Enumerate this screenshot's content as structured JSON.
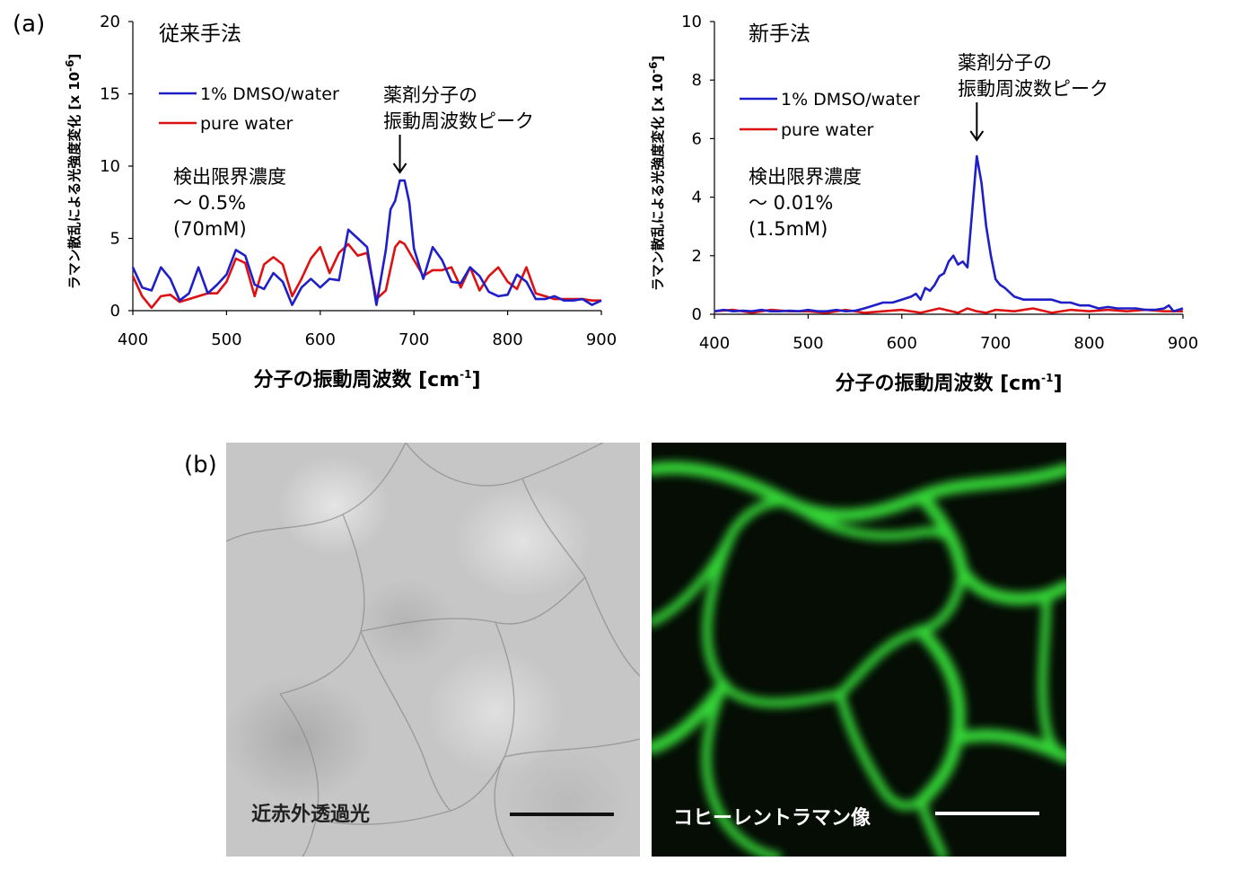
{
  "panel_labels": {
    "a": "(a)",
    "b": "(b)"
  },
  "chart_data": [
    {
      "type": "line",
      "title": "従来手法",
      "xlabel": "分子の振動周波数 [cm",
      "xlabel_sup": "-1",
      "xlabel_end": "]",
      "ylabel": "ラマン散乱による光強度変化 [x 10",
      "ylabel_sup": "-6",
      "ylabel_end": "]",
      "xlim": [
        400,
        900
      ],
      "ylim": [
        0,
        20
      ],
      "x_ticks": [
        400,
        500,
        600,
        700,
        800,
        900
      ],
      "y_ticks": [
        0,
        5,
        10,
        15,
        20
      ],
      "legend_position": "top-left",
      "annotations": {
        "peak_lines": [
          "薬剤分子の",
          "振動周波数ピーク"
        ],
        "peak_x": 685,
        "limit_lines": [
          "検出限界濃度",
          "～ 0.5%",
          "(70mM)"
        ]
      },
      "series": [
        {
          "name": "1% DMSO/water",
          "color": "#1f1fc8",
          "x": [
            400,
            410,
            420,
            430,
            440,
            450,
            460,
            470,
            480,
            490,
            500,
            510,
            520,
            530,
            540,
            550,
            560,
            570,
            580,
            590,
            600,
            610,
            620,
            630,
            640,
            650,
            660,
            670,
            675,
            680,
            685,
            690,
            695,
            700,
            710,
            720,
            730,
            740,
            750,
            760,
            770,
            780,
            790,
            800,
            810,
            820,
            830,
            840,
            850,
            860,
            870,
            880,
            890,
            900
          ],
          "y": [
            3.0,
            1.6,
            1.4,
            3.0,
            2.2,
            0.7,
            1.2,
            3.0,
            1.2,
            1.8,
            2.5,
            4.2,
            3.8,
            1.8,
            1.5,
            2.6,
            2.0,
            0.4,
            1.6,
            2.2,
            1.6,
            2.2,
            2.1,
            5.6,
            5.0,
            4.4,
            0.4,
            4.2,
            7.0,
            7.6,
            9.0,
            9.0,
            7.5,
            4.3,
            2.2,
            4.4,
            3.5,
            2.0,
            1.9,
            3.0,
            2.4,
            1.3,
            1.0,
            1.1,
            2.5,
            2.0,
            0.8,
            0.8,
            1.0,
            0.7,
            0.7,
            0.8,
            0.4,
            0.7
          ]
        },
        {
          "name": "pure water",
          "color": "#dd1111",
          "x": [
            400,
            410,
            420,
            430,
            440,
            450,
            460,
            470,
            480,
            490,
            500,
            510,
            520,
            530,
            540,
            550,
            560,
            570,
            580,
            590,
            600,
            610,
            620,
            630,
            640,
            650,
            660,
            670,
            680,
            685,
            690,
            700,
            710,
            720,
            730,
            740,
            750,
            760,
            770,
            780,
            790,
            800,
            810,
            820,
            830,
            840,
            850,
            860,
            870,
            880,
            890,
            900
          ],
          "y": [
            2.4,
            1.0,
            0.2,
            1.0,
            1.1,
            0.6,
            0.8,
            1.0,
            1.2,
            1.2,
            2.0,
            3.6,
            3.3,
            1.0,
            3.2,
            3.7,
            3.2,
            1.0,
            2.2,
            3.6,
            4.4,
            2.6,
            4.0,
            4.6,
            3.8,
            4.0,
            0.8,
            1.4,
            4.4,
            4.8,
            4.6,
            3.5,
            2.4,
            2.8,
            2.8,
            3.0,
            1.6,
            3.0,
            1.4,
            2.4,
            3.0,
            2.0,
            1.5,
            3.0,
            1.2,
            1.0,
            0.8,
            0.8,
            0.8,
            0.8,
            0.7,
            0.7
          ]
        }
      ]
    },
    {
      "type": "line",
      "title": "新手法",
      "xlabel": "分子の振動周波数 [cm",
      "xlabel_sup": "-1",
      "xlabel_end": "]",
      "ylabel": "ラマン散乱による光強度変化 [x 10",
      "ylabel_sup": "-6",
      "ylabel_end": "]",
      "xlim": [
        400,
        900
      ],
      "ylim": [
        0,
        10
      ],
      "x_ticks": [
        400,
        500,
        600,
        700,
        800,
        900
      ],
      "y_ticks": [
        0,
        2,
        4,
        6,
        8,
        10
      ],
      "legend_position": "top-left",
      "annotations": {
        "peak_lines": [
          "薬剤分子の",
          "振動周波数ピーク"
        ],
        "peak_x": 680,
        "limit_lines": [
          "検出限界濃度",
          "～ 0.01%",
          "(1.5mM)"
        ]
      },
      "series": [
        {
          "name": "1% DMSO/water",
          "color": "#1f1fc8",
          "x": [
            400,
            410,
            420,
            430,
            440,
            450,
            460,
            470,
            480,
            490,
            500,
            510,
            520,
            530,
            540,
            550,
            560,
            570,
            580,
            590,
            600,
            610,
            615,
            620,
            625,
            630,
            635,
            640,
            645,
            650,
            655,
            660,
            665,
            670,
            675,
            680,
            685,
            690,
            695,
            700,
            705,
            710,
            720,
            730,
            740,
            750,
            760,
            770,
            780,
            790,
            800,
            810,
            820,
            830,
            840,
            850,
            860,
            870,
            880,
            885,
            890,
            900
          ],
          "y": [
            0.1,
            0.15,
            0.1,
            0.12,
            0.1,
            0.15,
            0.1,
            0.1,
            0.12,
            0.1,
            0.15,
            0.1,
            0.1,
            0.15,
            0.1,
            0.12,
            0.2,
            0.3,
            0.4,
            0.4,
            0.5,
            0.6,
            0.7,
            0.5,
            0.9,
            0.8,
            1.0,
            1.3,
            1.4,
            1.8,
            2.0,
            1.7,
            1.8,
            1.6,
            3.5,
            5.4,
            4.5,
            3.0,
            2.0,
            1.2,
            1.0,
            0.9,
            0.6,
            0.5,
            0.5,
            0.5,
            0.5,
            0.4,
            0.4,
            0.3,
            0.3,
            0.2,
            0.25,
            0.2,
            0.2,
            0.2,
            0.15,
            0.15,
            0.2,
            0.3,
            0.1,
            0.2
          ]
        },
        {
          "name": "pure water",
          "color": "#dd1111",
          "x": [
            400,
            420,
            440,
            460,
            480,
            500,
            520,
            540,
            560,
            580,
            600,
            620,
            640,
            660,
            670,
            680,
            690,
            700,
            720,
            740,
            760,
            780,
            800,
            820,
            840,
            860,
            880,
            900
          ],
          "y": [
            0.1,
            0.15,
            0.05,
            0.15,
            0.1,
            0.1,
            0.05,
            0.15,
            0.05,
            0.1,
            0.15,
            0.05,
            0.2,
            0.05,
            0.2,
            0.1,
            0.05,
            0.15,
            0.1,
            0.2,
            0.05,
            0.15,
            0.1,
            0.15,
            0.1,
            0.15,
            0.1,
            0.1
          ]
        }
      ]
    }
  ],
  "images": {
    "left_caption": "近赤外透過光",
    "right_caption": "コヒーレントラマン像",
    "fluorescence_color": "#39e03a"
  }
}
